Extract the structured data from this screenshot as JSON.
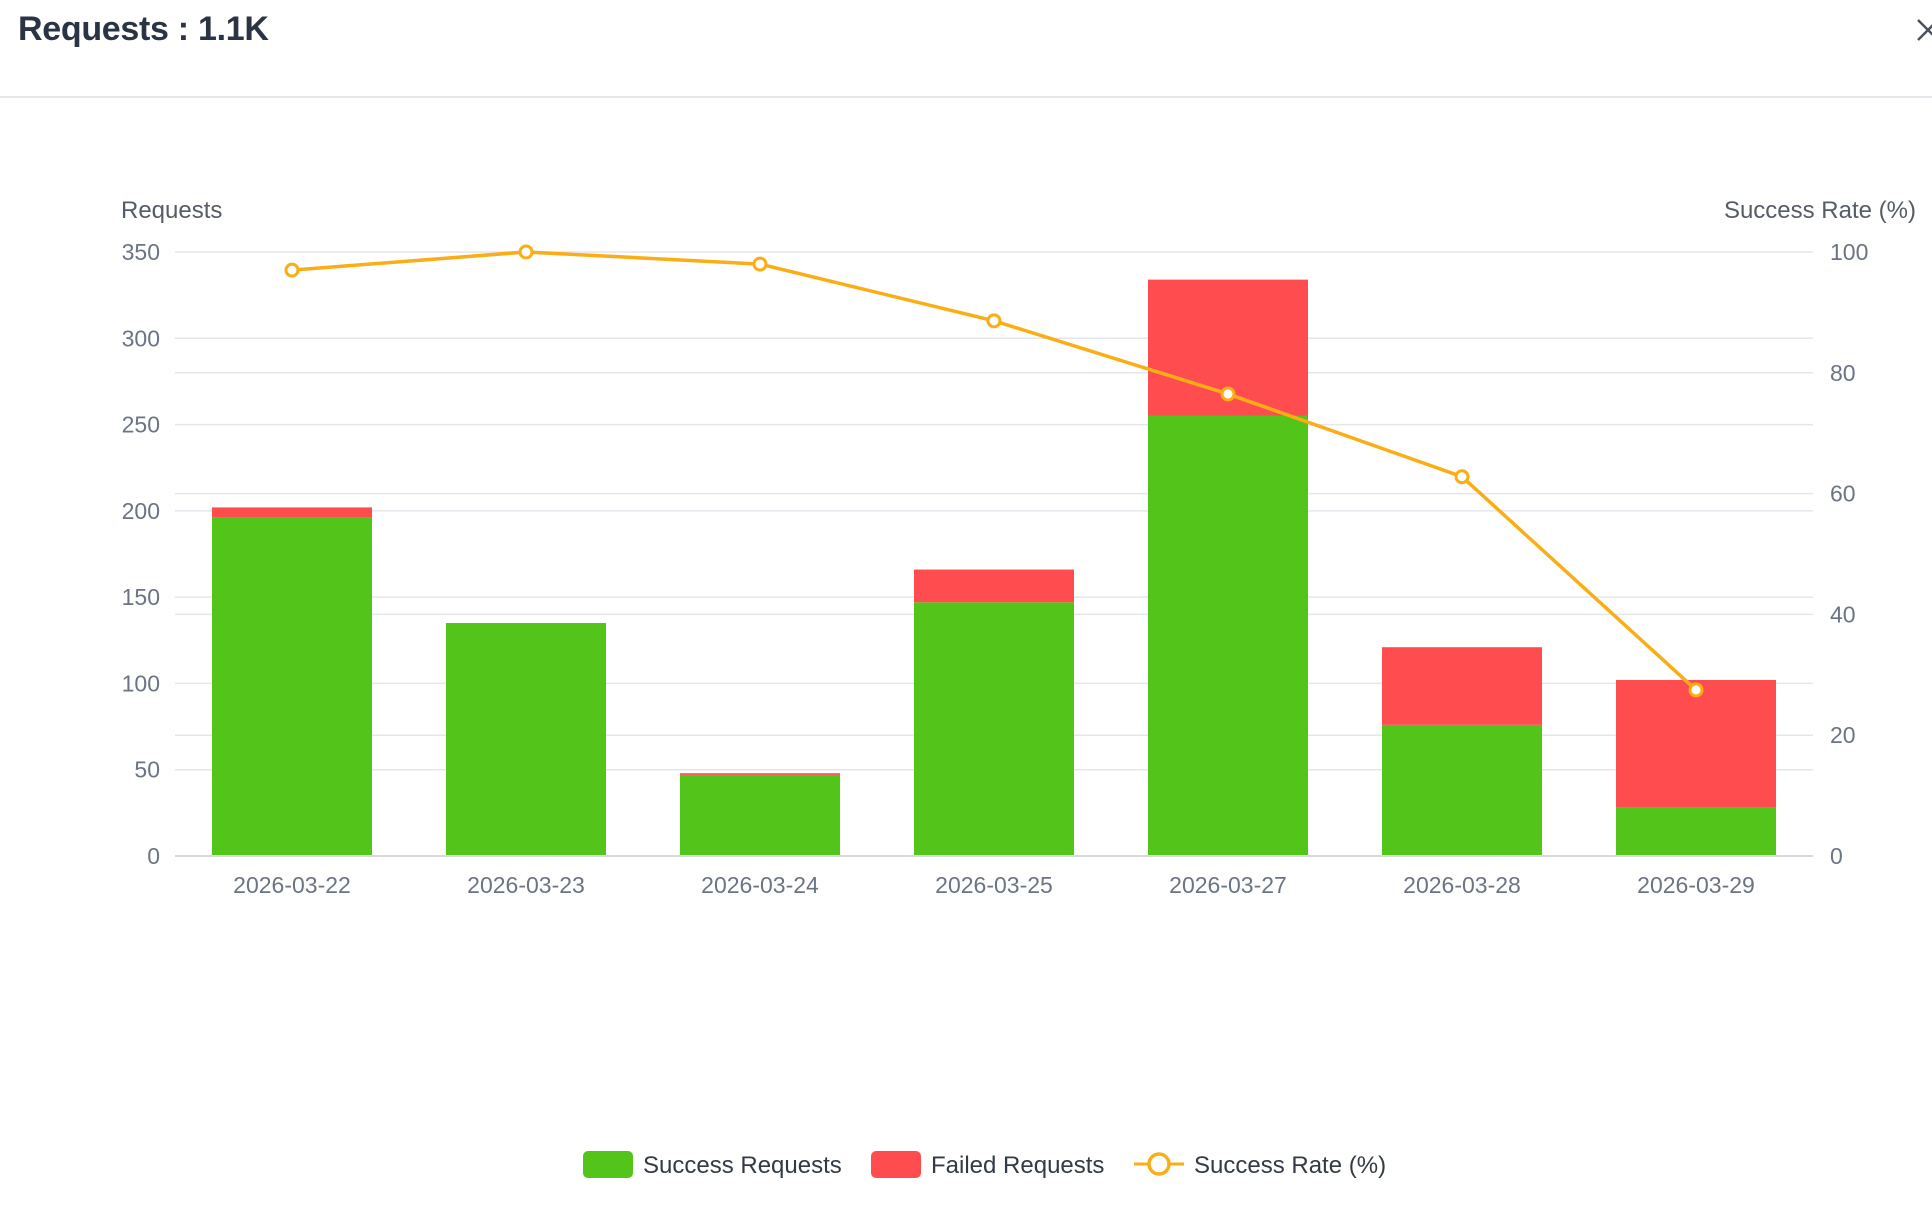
{
  "header": {
    "title": "Requests : 1.1K",
    "close_label": "×"
  },
  "colors": {
    "success": "#52c41a",
    "failed": "#ff4d4f",
    "rate": "#faad14",
    "grid": "#e3e6ec",
    "axis_text": "#6b7485"
  },
  "icons": {
    "close": "close-icon"
  },
  "chart_data": {
    "type": "bar",
    "stacked": true,
    "categories": [
      "2026-03-22",
      "2026-03-23",
      "2026-03-24",
      "2026-03-25",
      "2026-03-27",
      "2026-03-28",
      "2026-03-29"
    ],
    "series": [
      {
        "name": "Success Requests",
        "type": "bar",
        "axis": "left",
        "values": [
          196,
          135,
          47,
          147,
          255,
          76,
          28
        ]
      },
      {
        "name": "Failed Requests",
        "type": "bar",
        "axis": "left",
        "values": [
          6,
          0,
          1,
          19,
          79,
          45,
          74
        ]
      },
      {
        "name": "Success Rate (%)",
        "type": "line",
        "axis": "right",
        "values": [
          97,
          100,
          98,
          88.6,
          76.5,
          62.8,
          27.5
        ]
      }
    ],
    "y_left": {
      "label": "Requests",
      "min": 0,
      "max": 350,
      "ticks": [
        0,
        50,
        100,
        150,
        200,
        250,
        300,
        350
      ]
    },
    "y_right": {
      "label": "Success Rate (%)",
      "min": 0,
      "max": 100,
      "ticks": [
        0,
        20,
        40,
        60,
        80,
        100
      ]
    },
    "grid": true,
    "legend": "bottom-center"
  }
}
